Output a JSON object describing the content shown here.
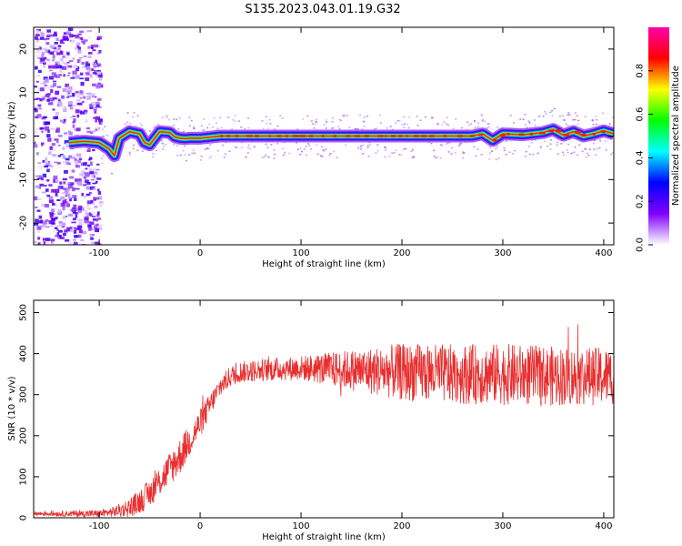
{
  "title": "S135.2023.043.01.19.G32",
  "chart_data": [
    {
      "type": "heatmap",
      "xlabel": "Height of straight line (km)",
      "ylabel": "Frequency (Hz)",
      "xlim": [
        -165,
        410
      ],
      "ylim": [
        -25,
        25
      ],
      "xticks": [
        -100,
        0,
        100,
        200,
        300,
        400
      ],
      "yticks": [
        -20,
        -10,
        0,
        10,
        20
      ],
      "colorbar": {
        "label": "Normalized spectral amplitude",
        "range": [
          0,
          1
        ],
        "ticks": [
          "0.0",
          "0.2",
          "0.4",
          "0.6",
          "0.8"
        ],
        "colors": [
          "#ffffff",
          "#8000ff",
          "#0000ff",
          "#00ffff",
          "#00ff00",
          "#ffff00",
          "#ff0000",
          "#ff00aa"
        ]
      },
      "ridge": {
        "x": [
          -130,
          -115,
          -100,
          -90,
          -85,
          -80,
          -70,
          -60,
          -55,
          -50,
          -40,
          -30,
          -25,
          -20,
          -15,
          -10,
          0,
          20,
          50,
          80,
          100,
          150,
          200,
          250,
          270,
          280,
          290,
          300,
          320,
          340,
          350,
          360,
          370,
          380,
          390,
          400,
          410
        ],
        "y": [
          -1.5,
          -1.2,
          -1.5,
          -3,
          -4.5,
          -0.5,
          1,
          0.5,
          -1.5,
          -2,
          1,
          0.8,
          -0.2,
          -0.5,
          -0.6,
          -0.5,
          -0.5,
          0,
          0,
          0,
          0,
          0,
          0,
          0,
          0,
          0.5,
          -1,
          0.5,
          0.3,
          0.8,
          1.5,
          0.2,
          1.0,
          0,
          0.5,
          1.2,
          0.5
        ]
      },
      "noise_region": [
        -165,
        -100
      ]
    },
    {
      "type": "line",
      "xlabel": "Height of straight line (km)",
      "ylabel": "SNR (10 * v/v)",
      "xlim": [
        -165,
        410
      ],
      "ylim": [
        0,
        530
      ],
      "xticks": [
        -100,
        0,
        100,
        200,
        300,
        400
      ],
      "yticks": [
        0,
        100,
        200,
        300,
        400,
        500
      ],
      "color": "#e82e2e",
      "trend": {
        "x": [
          -165,
          -100,
          -85,
          -70,
          -60,
          -50,
          -40,
          -30,
          -20,
          -10,
          0,
          10,
          20,
          30,
          40,
          60,
          100,
          150,
          200,
          250,
          300,
          350,
          410
        ],
        "y": [
          10,
          10,
          15,
          25,
          40,
          60,
          90,
          120,
          150,
          190,
          230,
          275,
          320,
          345,
          355,
          360,
          365,
          360,
          355,
          350,
          350,
          345,
          345
        ]
      },
      "noise_amplitude": {
        "x": [
          -165,
          -90,
          -60,
          -20,
          20,
          100,
          150,
          200,
          300,
          410
        ],
        "y": [
          5,
          10,
          30,
          45,
          25,
          30,
          50,
          70,
          75,
          70
        ]
      }
    }
  ]
}
